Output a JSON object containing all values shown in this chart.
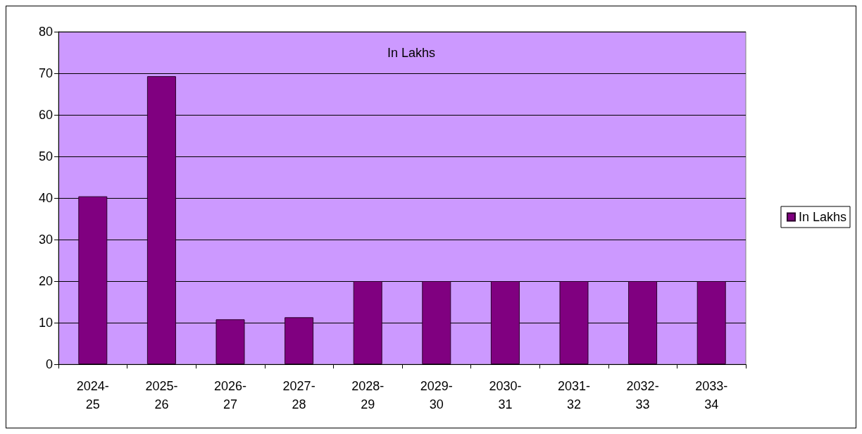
{
  "chart_data": {
    "type": "bar",
    "title": "In Lakhs",
    "categories": [
      "2024-25",
      "2025-26",
      "2026-27",
      "2027-28",
      "2028-29",
      "2029-30",
      "2030-31",
      "2031-32",
      "2032-33",
      "2033-34"
    ],
    "series": [
      {
        "name": "In Lakhs",
        "color": "#800080",
        "values": [
          40.4,
          69.3,
          10.8,
          11.3,
          20,
          20,
          20,
          20,
          20,
          20
        ]
      }
    ],
    "ylim": [
      0,
      80
    ],
    "yticks": [
      0,
      10,
      20,
      30,
      40,
      50,
      60,
      70,
      80
    ],
    "grid": "y",
    "legend": "right"
  }
}
